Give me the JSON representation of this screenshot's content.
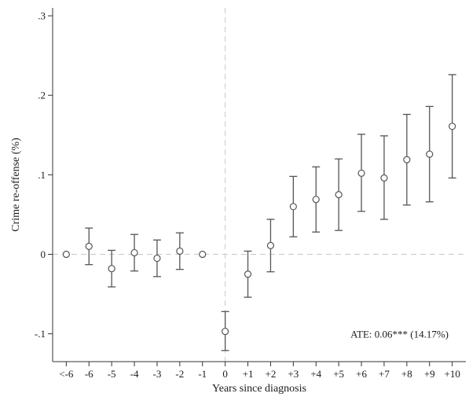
{
  "chart_data": {
    "type": "scatter",
    "title": "",
    "xlabel": "Years since diagnosis",
    "ylabel": "Crime re-offense (%)",
    "categories": [
      "<-6",
      "-6",
      "-5",
      "-4",
      "-3",
      "-2",
      "-1",
      "0",
      "+1",
      "+2",
      "+3",
      "+4",
      "+5",
      "+6",
      "+7",
      "+8",
      "+9",
      "+10"
    ],
    "estimates": [
      0,
      0.01,
      -0.018,
      0.002,
      -0.005,
      0.004,
      0,
      -0.097,
      -0.025,
      0.011,
      0.06,
      0.069,
      0.075,
      0.102,
      0.096,
      0.119,
      0.126,
      0.161
    ],
    "ci_low": [
      null,
      -0.013,
      -0.041,
      -0.021,
      -0.028,
      -0.019,
      null,
      -0.121,
      -0.054,
      -0.022,
      0.022,
      0.028,
      0.03,
      0.054,
      0.044,
      0.062,
      0.066,
      0.096
    ],
    "ci_high": [
      null,
      0.033,
      0.005,
      0.025,
      0.018,
      0.027,
      null,
      -0.072,
      0.004,
      0.044,
      0.098,
      0.11,
      0.12,
      0.151,
      0.149,
      0.176,
      0.186,
      0.226
    ],
    "yticks": [
      -0.1,
      0,
      0.1,
      0.2,
      0.3
    ],
    "ytick_labels": [
      "-.1",
      "0",
      ".1",
      ".2",
      ".3"
    ],
    "ylim": [
      -0.135,
      0.31
    ],
    "reference_lines": {
      "x": "0",
      "y": 0
    },
    "annotation": "ATE: 0.06*** (14.17%)",
    "grid": false,
    "colors": {
      "marker": "#555555",
      "errorbar": "#555555",
      "reference": "#c8c8c8",
      "axis": "#333333"
    }
  }
}
